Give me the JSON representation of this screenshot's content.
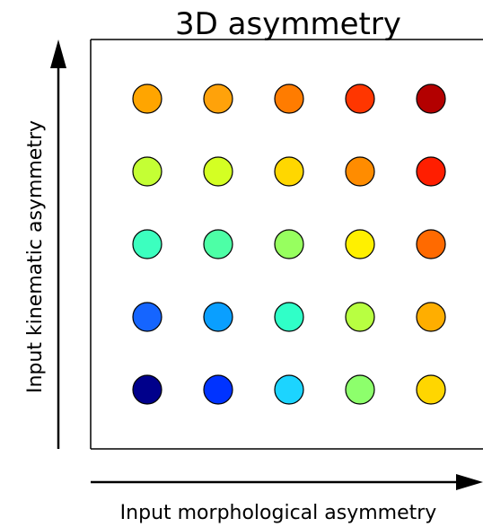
{
  "chart_data": {
    "type": "scatter",
    "title": "3D asymmetry",
    "xlabel": "Input morphological asymmetry",
    "ylabel": "Input kinematic asymmetry",
    "grid": false,
    "legend": "none",
    "x_levels": 5,
    "y_levels": 5,
    "points": [
      {
        "x": 1,
        "y": 5,
        "color": "#ffa500"
      },
      {
        "x": 2,
        "y": 5,
        "color": "#ffa20a"
      },
      {
        "x": 3,
        "y": 5,
        "color": "#ff7c00"
      },
      {
        "x": 4,
        "y": 5,
        "color": "#ff3600"
      },
      {
        "x": 5,
        "y": 5,
        "color": "#b30000"
      },
      {
        "x": 1,
        "y": 4,
        "color": "#c4ff34"
      },
      {
        "x": 2,
        "y": 4,
        "color": "#d4ff23"
      },
      {
        "x": 3,
        "y": 4,
        "color": "#ffd700"
      },
      {
        "x": 4,
        "y": 4,
        "color": "#ff8c00"
      },
      {
        "x": 5,
        "y": 4,
        "color": "#ff1e00"
      },
      {
        "x": 1,
        "y": 3,
        "color": "#3cffbf"
      },
      {
        "x": 2,
        "y": 3,
        "color": "#4dffa6"
      },
      {
        "x": 3,
        "y": 3,
        "color": "#97ff5f"
      },
      {
        "x": 4,
        "y": 3,
        "color": "#fff000"
      },
      {
        "x": 5,
        "y": 3,
        "color": "#ff6a00"
      },
      {
        "x": 1,
        "y": 2,
        "color": "#1565ff"
      },
      {
        "x": 2,
        "y": 2,
        "color": "#0a9fff"
      },
      {
        "x": 3,
        "y": 2,
        "color": "#30ffc8"
      },
      {
        "x": 4,
        "y": 2,
        "color": "#b8ff41"
      },
      {
        "x": 5,
        "y": 2,
        "color": "#ffae00"
      },
      {
        "x": 1,
        "y": 1,
        "color": "#00008b"
      },
      {
        "x": 2,
        "y": 1,
        "color": "#0033ff"
      },
      {
        "x": 3,
        "y": 1,
        "color": "#1cd4ff"
      },
      {
        "x": 4,
        "y": 1,
        "color": "#8dff6c"
      },
      {
        "x": 5,
        "y": 1,
        "color": "#ffd600"
      }
    ]
  }
}
